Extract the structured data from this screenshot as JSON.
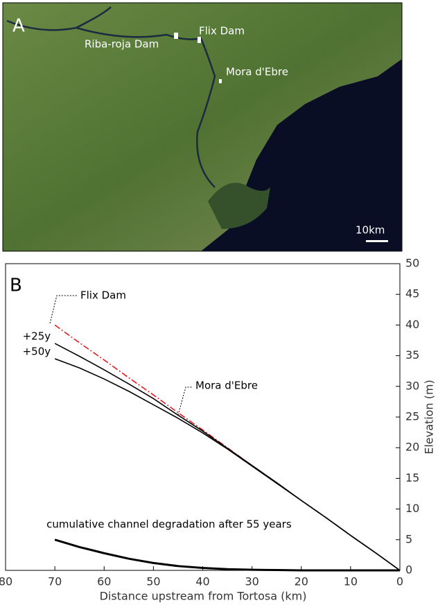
{
  "map_panel": {
    "label": "A",
    "places": [
      "Riba-roja Dam",
      "Flix Dam",
      "Mora d'Ebre"
    ],
    "scale_bar": "10km"
  },
  "chart_data": {
    "type": "line",
    "panel_label": "B",
    "x_label": "Distance upstream from Tortosa (km)",
    "y_label": "Elevation (m)",
    "xlim": [
      80,
      0
    ],
    "xticks": [
      80,
      70,
      60,
      50,
      40,
      30,
      20,
      10,
      0
    ],
    "ylim": [
      0,
      50
    ],
    "yticks": [
      0,
      5,
      10,
      15,
      20,
      25,
      30,
      35,
      40,
      45,
      50
    ],
    "annotations": [
      "Flix Dam",
      "Mora d'Ebre"
    ],
    "x": [
      70,
      65,
      60,
      55,
      50,
      45,
      40,
      35,
      30,
      25,
      20,
      15,
      10,
      5,
      0
    ],
    "series": [
      {
        "color": "#e31a1c",
        "dash": "dash-dot",
        "values": [
          40,
          37.1,
          34.3,
          31.4,
          28.6,
          25.7,
          22.9,
          20,
          17.1,
          14.3,
          11.4,
          8.6,
          5.7,
          2.9,
          0
        ]
      },
      {
        "name": "+25y",
        "color": "#000000",
        "values": [
          37,
          34.9,
          32.7,
          30.4,
          28,
          25.3,
          22.7,
          19.9,
          17.1,
          14.3,
          11.4,
          8.6,
          5.7,
          2.9,
          0
        ]
      },
      {
        "name": "+50y",
        "color": "#000000",
        "values": [
          34.5,
          33,
          31.2,
          29.2,
          27,
          24.8,
          22.4,
          19.8,
          17,
          14.2,
          11.4,
          8.6,
          5.7,
          2.9,
          0
        ]
      },
      {
        "name": "cumulative channel degradation after 55 years",
        "color": "#000000",
        "values": [
          5,
          3.8,
          2.8,
          1.9,
          1.2,
          0.7,
          0.4,
          0.2,
          0.1,
          0.05,
          0,
          0,
          0,
          0,
          0
        ]
      }
    ]
  }
}
